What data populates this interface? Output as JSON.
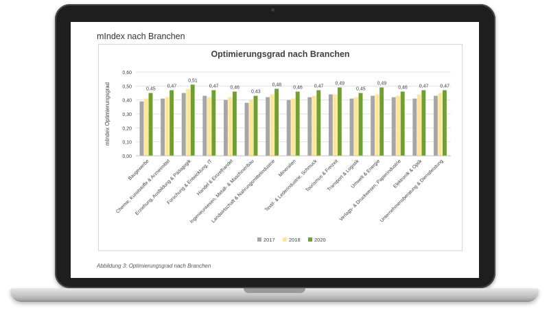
{
  "page": {
    "section_title": "mIndex nach Branchen",
    "caption": "Abbildung 3: Optimierungsgrad nach Branchen"
  },
  "colors": {
    "2017": "#a6a6a6",
    "2018": "#ffe699",
    "2020": "#70a030",
    "grid": "#e0e0e0",
    "text": "#404040"
  },
  "chart_data": {
    "type": "bar",
    "title": "Optimierungsgrad nach Branchen",
    "ylabel": "mIndex Optimierungsgrad",
    "xlabel": "",
    "ylim": [
      0,
      0.6
    ],
    "yticks": [
      "0,00",
      "0,10",
      "0,20",
      "0,30",
      "0,40",
      "0,50",
      "0,60"
    ],
    "grid": true,
    "legend_position": "bottom",
    "categories": [
      "Baugewerbe",
      "Chemie, Kunststoffe & Arzneimittel",
      "Erziehung, Ausbildung & Pädagogik",
      "Forschung & Entwicklung, IT",
      "Handel & Einzelhandel",
      "Ingenieurwesen, Metall- & Maschinenbau",
      "Landwirtschaft & Nahrungsmittelindustrie",
      "Mineralien",
      "Textil- & Lederindustrie, Schmuck",
      "Tourismus & Freizeit",
      "Transport & Logistik",
      "Umwelt & Energie",
      "Verlags- & Druckwesen, Papierindustrie",
      "Elektronik & Optik",
      "Unternehmensberatung & Dienstleistung"
    ],
    "series": [
      {
        "name": "2017",
        "values": [
          0.39,
          0.41,
          0.45,
          0.43,
          0.4,
          0.38,
          0.42,
          0.4,
          0.42,
          0.44,
          0.41,
          0.43,
          0.42,
          0.41,
          0.43
        ]
      },
      {
        "name": "2018",
        "values": [
          0.41,
          0.42,
          0.48,
          0.42,
          0.42,
          0.4,
          0.44,
          0.41,
          0.43,
          0.44,
          0.42,
          0.44,
          0.43,
          0.44,
          0.45
        ]
      },
      {
        "name": "2020",
        "values": [
          0.45,
          0.47,
          0.51,
          0.47,
          0.46,
          0.43,
          0.48,
          0.46,
          0.47,
          0.49,
          0.45,
          0.49,
          0.46,
          0.47,
          0.47
        ]
      }
    ],
    "data_labels": [
      "0,45",
      "0,47",
      "0,51",
      "0,47",
      "0,46",
      "0,43",
      "0,48",
      "0,46",
      "0,47",
      "0,49",
      "0,45",
      "0,49",
      "0,46",
      "0,47",
      "0,47"
    ]
  }
}
